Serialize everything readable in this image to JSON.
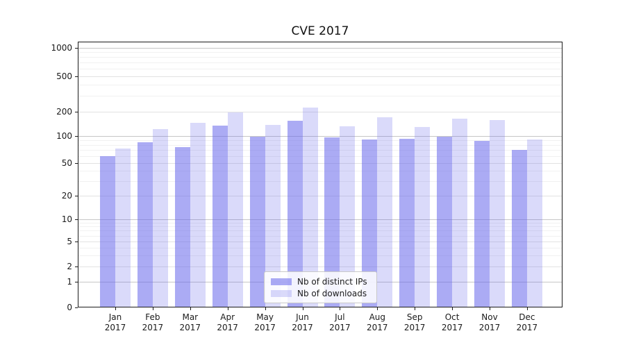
{
  "title": "CVE 2017",
  "colors": {
    "ips_bar": "rgba(102,102,235,0.55)",
    "downloads_bar": "rgba(102,102,235,0.24)",
    "grid_major": "#c6c6c6",
    "grid_labeled": "#e2e2e2",
    "grid_minor": "#f1f1f1",
    "axis": "#1a1a1a"
  },
  "chart_data": {
    "type": "bar",
    "title": "CVE 2017",
    "categories": [
      "Jan 2017",
      "Feb 2017",
      "Mar 2017",
      "Apr 2017",
      "May 2017",
      "Jun 2017",
      "Jul 2017",
      "Aug 2017",
      "Sep 2017",
      "Oct 2017",
      "Nov 2017",
      "Dec 2017"
    ],
    "series": [
      {
        "name": "Nb of distinct IPs",
        "color_key": "ips_bar",
        "values": [
          60,
          85,
          75,
          134,
          98,
          154,
          97,
          91,
          93,
          99,
          89,
          70
        ]
      },
      {
        "name": "Nb of downloads",
        "color_key": "downloads_bar",
        "values": [
          72,
          121,
          144,
          196,
          137,
          220,
          131,
          171,
          130,
          163,
          156,
          91
        ]
      }
    ],
    "xlabel": "",
    "ylabel": "",
    "yscale": "symlog",
    "y_ticks": [
      0,
      1,
      2,
      5,
      10,
      20,
      50,
      100,
      200,
      500,
      1000
    ],
    "ylim": [
      0,
      1500
    ],
    "grid": true,
    "legend_position": "lower-center"
  }
}
